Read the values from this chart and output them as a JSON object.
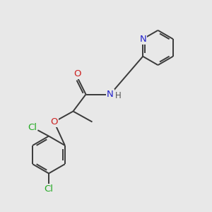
{
  "background_color": "#e8e8e8",
  "bond_color": "#3a3a3a",
  "bond_width": 1.4,
  "atom_colors": {
    "N": "#2222cc",
    "O": "#cc2222",
    "Cl": "#22aa22",
    "H": "#555555"
  },
  "font_size_atom": 9.5,
  "font_size_h": 8.5
}
